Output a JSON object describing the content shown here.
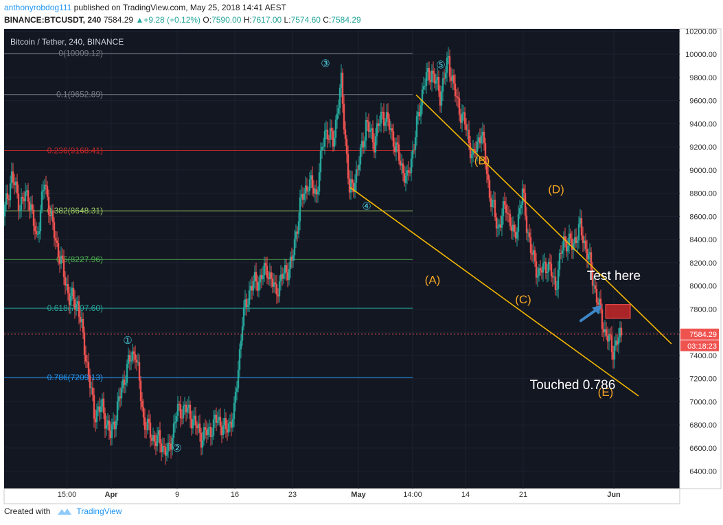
{
  "header": {
    "username": "anthonyrobdog111",
    "published_text": "published on TradingView.com, May 25, 2018 14:41 AEST",
    "symbol": "BINANCE:BTCUSDT, 240",
    "last": "7584.29",
    "change": "+9.28 (+0.12%)",
    "open_label": "O:",
    "open": "7590.00",
    "high_label": "H:",
    "high": "7617.00",
    "low_label": "L:",
    "low": "7574.60",
    "close_label": "C:",
    "close": "7584.29"
  },
  "footer": {
    "created_with": "Created with",
    "brand": "TradingView"
  },
  "colors": {
    "background": "#131722",
    "up": "#26a69a",
    "down": "#ef5350",
    "channel": "#f5b800",
    "annotation": "#f5a623",
    "wave_marker": "#4dd0e1",
    "price_line": "#ef5350",
    "target_box": "#c62828",
    "arrow": "#3d85c6"
  },
  "chart_data": {
    "type": "candlestick",
    "title": "Bitcoin / Tether, 240, BINANCE",
    "y_ticks": [
      "10200.00",
      "10000.00",
      "9800.00",
      "9600.00",
      "9400.00",
      "9200.00",
      "9000.00",
      "8800.00",
      "8600.00",
      "8400.00",
      "8200.00",
      "8000.00",
      "7800.00",
      "7600.00",
      "7400.00",
      "7200.00",
      "7000.00",
      "6800.00",
      "6600.00",
      "6400.00"
    ],
    "ylim": [
      6250,
      10220
    ],
    "x_ticks": [
      "15:00",
      "Apr",
      "9",
      "16",
      "23",
      "May",
      "14:00",
      "14",
      "21",
      "Jun"
    ],
    "x_tick_dates": [
      "2018-03-26 15:00",
      "2018-04-01",
      "2018-04-09",
      "2018-04-16",
      "2018-04-23",
      "2018-05-01",
      "2018-05-07 14:00",
      "2018-05-14",
      "2018-05-21",
      "2018-06-01"
    ],
    "xlim": [
      "2018-03-19",
      "2018-06-09"
    ],
    "last_price_label": "7584.29",
    "countdown_label": "03:18:23",
    "last_price": 7584.29,
    "fibonacci_levels": [
      {
        "label": "0(10009.12)",
        "value": 10009.12,
        "color": "#787b86"
      },
      {
        "label": "0.1(9652.89)",
        "value": 9652.89,
        "color": "#787b86"
      },
      {
        "label": "0.236(9168.41)",
        "value": 9168.41,
        "color": "#c62828"
      },
      {
        "label": "0.382(8648.31)",
        "value": 8648.31,
        "color": "#9ccc65"
      },
      {
        "label": "0.5(8227.96)",
        "value": 8227.96,
        "color": "#4caf50"
      },
      {
        "label": "0.618(7807.60)",
        "value": 7807.6,
        "color": "#26a69a"
      },
      {
        "label": "0.786(7209.13)",
        "value": 7209.13,
        "color": "#2196f3"
      }
    ],
    "fib_range": [
      "2018-03-19",
      "2018-05-07 14:00"
    ],
    "path_points": [
      [
        "2018-03-19",
        8600
      ],
      [
        "2018-03-20",
        8950
      ],
      [
        "2018-03-21",
        8700
      ],
      [
        "2018-03-22",
        8800
      ],
      [
        "2018-03-23",
        8400
      ],
      [
        "2018-03-24",
        8900
      ],
      [
        "2018-03-25",
        8500
      ],
      [
        "2018-03-26",
        8200
      ],
      [
        "2018-03-27",
        7900
      ],
      [
        "2018-03-28",
        7850
      ],
      [
        "2018-03-29",
        7400
      ],
      [
        "2018-03-30",
        6900
      ],
      [
        "2018-03-31",
        6950
      ],
      [
        "2018-04-01",
        6700
      ],
      [
        "2018-04-02",
        7000
      ],
      [
        "2018-04-03",
        7300
      ],
      [
        "2018-04-04",
        7450
      ],
      [
        "2018-04-05",
        6850
      ],
      [
        "2018-04-06",
        6700
      ],
      [
        "2018-04-07",
        6650
      ],
      [
        "2018-04-08",
        6550
      ],
      [
        "2018-04-09",
        6900
      ],
      [
        "2018-04-10",
        6950
      ],
      [
        "2018-04-11",
        6850
      ],
      [
        "2018-04-12",
        6700
      ],
      [
        "2018-04-13",
        6750
      ],
      [
        "2018-04-14",
        6850
      ],
      [
        "2018-04-15",
        6750
      ],
      [
        "2018-04-16",
        6900
      ],
      [
        "2018-04-17",
        7700
      ],
      [
        "2018-04-18",
        8000
      ],
      [
        "2018-04-19",
        8050
      ],
      [
        "2018-04-20",
        8150
      ],
      [
        "2018-04-21",
        7950
      ],
      [
        "2018-04-22",
        8100
      ],
      [
        "2018-04-23",
        8200
      ],
      [
        "2018-04-24",
        8700
      ],
      [
        "2018-04-25",
        8900
      ],
      [
        "2018-04-26",
        8800
      ],
      [
        "2018-04-27",
        9350
      ],
      [
        "2018-04-28",
        9250
      ],
      [
        "2018-04-29",
        9750
      ],
      [
        "2018-04-30",
        8800
      ],
      [
        "2018-05-01",
        9000
      ],
      [
        "2018-05-02",
        9400
      ],
      [
        "2018-05-03",
        9250
      ],
      [
        "2018-05-04",
        9500
      ],
      [
        "2018-05-05",
        9350
      ],
      [
        "2018-05-06",
        9100
      ],
      [
        "2018-05-07",
        8900
      ],
      [
        "2018-05-08",
        9300
      ],
      [
        "2018-05-09",
        9750
      ],
      [
        "2018-05-10",
        9850
      ],
      [
        "2018-05-11",
        9650
      ],
      [
        "2018-05-12",
        9950
      ],
      [
        "2018-05-13",
        9600
      ],
      [
        "2018-05-14",
        9400
      ],
      [
        "2018-05-15",
        9100
      ],
      [
        "2018-05-16",
        9350
      ],
      [
        "2018-05-17",
        8800
      ],
      [
        "2018-05-18",
        8500
      ],
      [
        "2018-05-19",
        8700
      ],
      [
        "2018-05-20",
        8400
      ],
      [
        "2018-05-21",
        8800
      ],
      [
        "2018-05-22",
        8300
      ],
      [
        "2018-05-23",
        8100
      ],
      [
        "2018-05-24",
        8200
      ],
      [
        "2018-05-25",
        8000
      ],
      [
        "2018-05-26",
        8400
      ],
      [
        "2018-05-27",
        8350
      ],
      [
        "2018-05-28",
        8500
      ],
      [
        "2018-05-29",
        8250
      ],
      [
        "2018-05-30",
        7900
      ],
      [
        "2018-05-31",
        7600
      ],
      [
        "2018-06-01",
        7450
      ],
      [
        "2018-06-02",
        7584.29
      ]
    ],
    "channel_lines": [
      {
        "from": [
          "2018-05-08",
          9650
        ],
        "to": [
          "2018-06-08",
          7500
        ]
      },
      {
        "from": [
          "2018-04-30",
          8850
        ],
        "to": [
          "2018-06-04",
          7050
        ]
      }
    ],
    "wave_labels": [
      {
        "text": "②",
        "x": "2018-04-09",
        "y": 6570
      },
      {
        "text": "③",
        "x": "2018-04-27",
        "y": 9890
      },
      {
        "text": "④",
        "x": "2018-05-02",
        "y": 8660
      },
      {
        "text": "①",
        "x": "2018-04-03",
        "y": 7500
      },
      {
        "text": "⑤",
        "x": "2018-05-11",
        "y": 9880
      }
    ],
    "abc_labels": [
      {
        "text": "(A)",
        "x": "2018-05-10",
        "y": 8020
      },
      {
        "text": "(B)",
        "x": "2018-05-16",
        "y": 9050
      },
      {
        "text": "(C)",
        "x": "2018-05-21",
        "y": 7850
      },
      {
        "text": "(D)",
        "x": "2018-05-25",
        "y": 8800
      },
      {
        "text": "(E)",
        "x": "2018-05-31",
        "y": 7050
      }
    ],
    "annotations": [
      {
        "text": "Test here",
        "x": "2018-06-01",
        "y": 8050
      },
      {
        "text": "Touched 0.786",
        "x": "2018-05-27",
        "y": 7110
      }
    ],
    "target_zone": {
      "x0": "2018-05-31",
      "x1": "2018-06-03",
      "y0": 7720,
      "y1": 7840
    },
    "arrow": {
      "from": [
        "2018-05-28",
        7700
      ],
      "to": [
        "2018-05-30",
        7800
      ]
    }
  }
}
